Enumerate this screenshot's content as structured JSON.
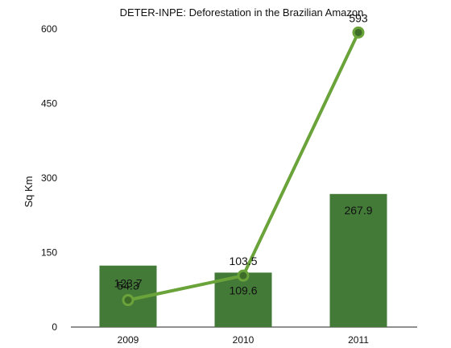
{
  "chart_data": {
    "type": "bar",
    "title": "DETER-INPE: Deforestation in the Brazilian Amazon",
    "xlabel": "",
    "ylabel": "Sq Km",
    "categories": [
      "2009",
      "2010",
      "2011"
    ],
    "ylim": [
      0,
      600
    ],
    "yticks": [
      0,
      150,
      300,
      450,
      600
    ],
    "series": [
      {
        "type": "bar",
        "values": [
          123.7,
          109.6,
          267.9
        ],
        "labels": [
          "123.7",
          "109.6",
          "267.9"
        ],
        "color": "#437a38"
      },
      {
        "type": "line",
        "values": [
          54.3,
          103.5,
          593
        ],
        "labels": [
          "54.3",
          "103.5",
          "593"
        ],
        "color": "#6aa33a"
      }
    ],
    "grid": false,
    "legend": "none"
  }
}
